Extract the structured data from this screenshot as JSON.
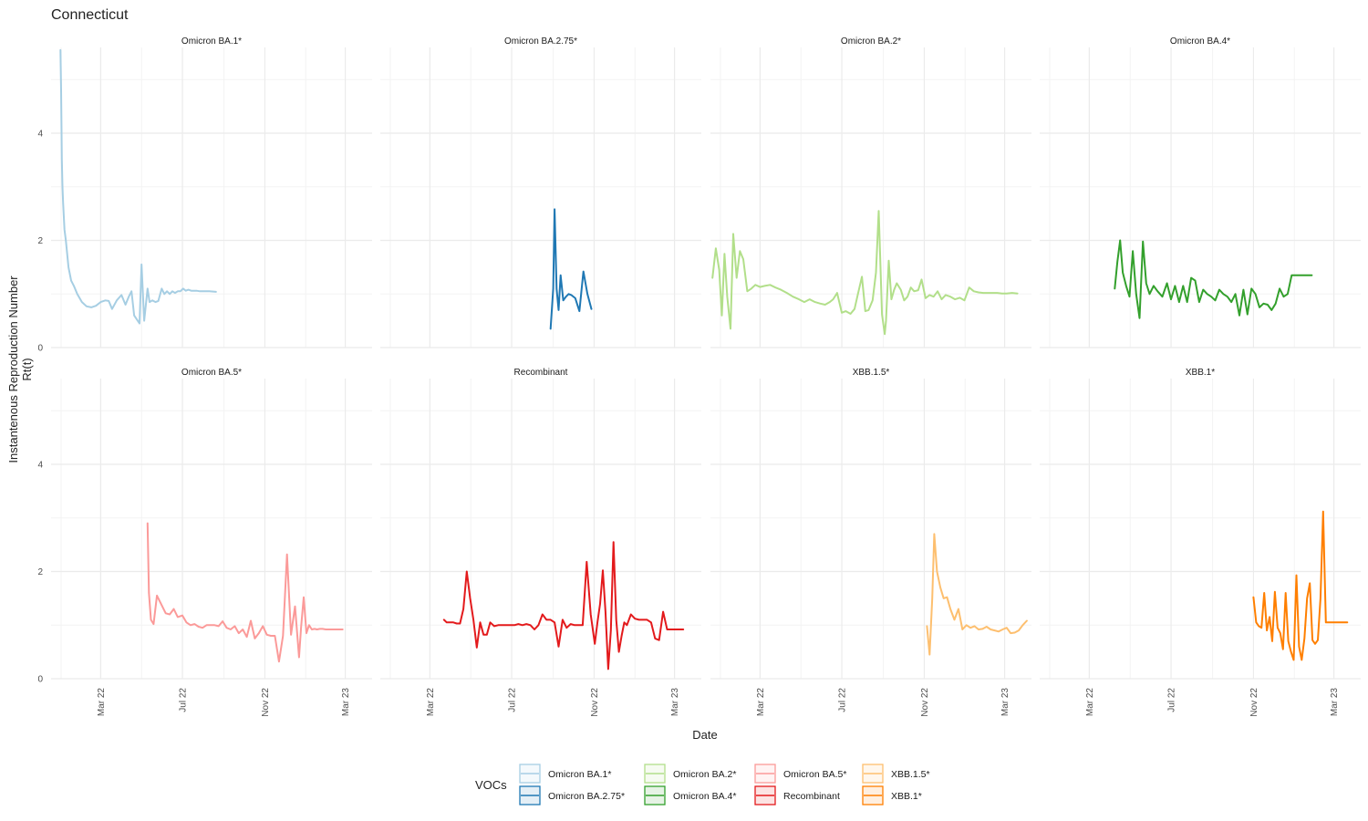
{
  "title": "Connecticut",
  "chart_data": {
    "type": "line",
    "title": "Connecticut",
    "xlabel": "Date",
    "ylabel_line1": "Instantenous Reproduction Number",
    "ylabel_line2": "Rt(t)",
    "x_ticks": [
      "Mar 22",
      "Jul 22",
      "Nov 22",
      "Mar 23"
    ],
    "y_ticks": [
      "0",
      "2",
      "4"
    ],
    "ylim": [
      0,
      5.6
    ],
    "grid": true,
    "legend": {
      "title": "VOCs",
      "position": "bottom",
      "entries": [
        {
          "label": "Omicron BA.1*",
          "color": "#a6cee3"
        },
        {
          "label": "Omicron BA.2.75*",
          "color": "#1f78b4"
        },
        {
          "label": "Omicron BA.2*",
          "color": "#b2df8a"
        },
        {
          "label": "Omicron BA.4*",
          "color": "#33a02c"
        },
        {
          "label": "Omicron BA.5*",
          "color": "#fb9a99"
        },
        {
          "label": "Recombinant",
          "color": "#e31a1c"
        },
        {
          "label": "XBB.1.5*",
          "color": "#fdbf6f"
        },
        {
          "label": "XBB.1*",
          "color": "#ff7f00"
        }
      ]
    },
    "series": [
      {
        "name": "Omicron BA.1*",
        "color": "#a6cee3",
        "x": [
          "2021-12-31",
          "2022-01-01",
          "2022-01-02",
          "2022-01-03",
          "2022-01-04",
          "2022-01-06",
          "2022-01-08",
          "2022-01-12",
          "2022-01-16",
          "2022-01-20",
          "2022-01-25",
          "2022-02-01",
          "2022-02-08",
          "2022-02-15",
          "2022-02-22",
          "2022-03-01",
          "2022-03-08",
          "2022-03-13",
          "2022-03-18",
          "2022-03-25",
          "2022-04-01",
          "2022-04-07",
          "2022-04-12",
          "2022-04-16",
          "2022-04-20",
          "2022-04-28",
          "2022-05-01",
          "2022-05-05",
          "2022-05-10",
          "2022-05-13",
          "2022-05-17",
          "2022-05-22",
          "2022-05-26",
          "2022-05-31",
          "2022-06-04",
          "2022-06-08",
          "2022-06-12",
          "2022-06-16",
          "2022-06-20",
          "2022-06-24",
          "2022-06-28",
          "2022-07-02",
          "2022-07-06",
          "2022-07-10",
          "2022-07-14",
          "2022-07-18",
          "2022-07-22",
          "2022-07-27",
          "2022-08-01",
          "2022-08-10",
          "2022-08-20"
        ],
        "y": [
          5.55,
          4.8,
          3.5,
          3.0,
          2.7,
          2.2,
          2.0,
          1.5,
          1.25,
          1.15,
          1.0,
          0.85,
          0.77,
          0.75,
          0.78,
          0.85,
          0.88,
          0.87,
          0.72,
          0.88,
          0.98,
          0.8,
          0.95,
          1.05,
          0.6,
          0.45,
          1.55,
          0.5,
          1.1,
          0.85,
          0.88,
          0.85,
          0.87,
          1.1,
          1.0,
          1.05,
          1.0,
          1.05,
          1.02,
          1.05,
          1.05,
          1.1,
          1.06,
          1.08,
          1.06,
          1.06,
          1.06,
          1.05,
          1.05,
          1.05,
          1.04
        ]
      },
      {
        "name": "Omicron BA.2.75*",
        "color": "#1f78b4",
        "x": [
          "2022-08-28",
          "2022-09-01",
          "2022-09-03",
          "2022-09-06",
          "2022-09-09",
          "2022-09-12",
          "2022-09-16",
          "2022-09-20",
          "2022-09-24",
          "2022-09-28",
          "2022-10-04",
          "2022-10-10",
          "2022-10-16",
          "2022-10-22",
          "2022-10-28"
        ],
        "y": [
          0.35,
          1.1,
          2.58,
          1.1,
          0.7,
          1.35,
          0.88,
          0.95,
          1.0,
          0.98,
          0.92,
          0.68,
          1.42,
          1.0,
          0.72
        ]
      },
      {
        "name": "Omicron BA.2*",
        "color": "#b2df8a",
        "x": [
          "2021-12-20",
          "2021-12-25",
          "2021-12-30",
          "2022-01-03",
          "2022-01-07",
          "2022-01-11",
          "2022-01-16",
          "2022-01-20",
          "2022-01-25",
          "2022-01-30",
          "2022-02-04",
          "2022-02-10",
          "2022-02-16",
          "2022-02-22",
          "2022-03-01",
          "2022-03-08",
          "2022-03-16",
          "2022-03-24",
          "2022-04-01",
          "2022-04-10",
          "2022-04-19",
          "2022-04-28",
          "2022-05-06",
          "2022-05-14",
          "2022-05-22",
          "2022-05-30",
          "2022-06-06",
          "2022-06-13",
          "2022-06-18",
          "2022-06-24",
          "2022-07-01",
          "2022-07-07",
          "2022-07-14",
          "2022-07-20",
          "2022-07-25",
          "2022-07-31",
          "2022-08-05",
          "2022-08-10",
          "2022-08-16",
          "2022-08-21",
          "2022-08-25",
          "2022-08-30",
          "2022-09-03",
          "2022-09-05",
          "2022-09-09",
          "2022-09-13",
          "2022-09-17",
          "2022-09-21",
          "2022-09-27",
          "2022-10-02",
          "2022-10-07",
          "2022-10-12",
          "2022-10-17",
          "2022-10-23",
          "2022-10-28",
          "2022-11-03",
          "2022-11-09",
          "2022-11-15",
          "2022-11-21",
          "2022-11-27",
          "2022-12-03",
          "2022-12-10",
          "2022-12-17",
          "2022-12-24",
          "2022-12-31",
          "2023-01-07",
          "2023-01-14",
          "2023-01-21",
          "2023-01-28",
          "2023-02-04",
          "2023-02-11",
          "2023-02-18",
          "2023-02-25",
          "2023-03-04",
          "2023-03-12",
          "2023-03-20"
        ],
        "y": [
          1.3,
          1.85,
          1.45,
          0.6,
          1.75,
          0.95,
          0.35,
          2.12,
          1.3,
          1.8,
          1.65,
          1.05,
          1.1,
          1.17,
          1.13,
          1.15,
          1.17,
          1.12,
          1.08,
          1.02,
          0.95,
          0.9,
          0.85,
          0.9,
          0.85,
          0.82,
          0.8,
          0.85,
          0.9,
          1.02,
          0.65,
          0.68,
          0.63,
          0.72,
          1.0,
          1.32,
          0.68,
          0.7,
          0.88,
          1.4,
          2.55,
          0.62,
          0.25,
          0.5,
          1.62,
          0.9,
          1.08,
          1.2,
          1.08,
          0.88,
          0.95,
          1.12,
          1.05,
          1.07,
          1.27,
          0.92,
          0.98,
          0.95,
          1.05,
          0.9,
          0.98,
          0.95,
          0.9,
          0.93,
          0.88,
          1.12,
          1.05,
          1.03,
          1.02,
          1.02,
          1.02,
          1.02,
          1.01,
          1.01,
          1.02,
          1.01
        ]
      },
      {
        "name": "Omicron BA.4*",
        "color": "#33a02c",
        "x": [
          "2022-04-08",
          "2022-04-12",
          "2022-04-16",
          "2022-04-20",
          "2022-04-25",
          "2022-04-30",
          "2022-05-05",
          "2022-05-10",
          "2022-05-15",
          "2022-05-20",
          "2022-05-25",
          "2022-05-30",
          "2022-06-05",
          "2022-06-11",
          "2022-06-18",
          "2022-06-25",
          "2022-07-01",
          "2022-07-07",
          "2022-07-13",
          "2022-07-19",
          "2022-07-25",
          "2022-07-31",
          "2022-08-06",
          "2022-08-12",
          "2022-08-18",
          "2022-08-24",
          "2022-08-30",
          "2022-09-05",
          "2022-09-11",
          "2022-09-17",
          "2022-09-23",
          "2022-09-29",
          "2022-10-05",
          "2022-10-11",
          "2022-10-17",
          "2022-10-23",
          "2022-10-29",
          "2022-11-04",
          "2022-11-10",
          "2022-11-16",
          "2022-11-22",
          "2022-11-28",
          "2022-12-04",
          "2022-12-10",
          "2022-12-16",
          "2022-12-22",
          "2022-12-28",
          "2023-01-03",
          "2023-01-09",
          "2023-01-15",
          "2023-01-21",
          "2023-01-27"
        ],
        "y": [
          1.1,
          1.6,
          2.0,
          1.4,
          1.15,
          0.95,
          1.8,
          1.0,
          0.55,
          1.98,
          1.2,
          1.0,
          1.15,
          1.05,
          0.95,
          1.2,
          0.9,
          1.15,
          0.85,
          1.15,
          0.85,
          1.3,
          1.25,
          0.85,
          1.08,
          1.0,
          0.95,
          0.88,
          1.08,
          1.0,
          0.95,
          0.85,
          1.0,
          0.6,
          1.08,
          0.62,
          1.1,
          1.0,
          0.75,
          0.82,
          0.8,
          0.7,
          0.82,
          1.1,
          0.95,
          1.0,
          1.35,
          1.35,
          1.35,
          1.35,
          1.35,
          1.35
        ]
      },
      {
        "name": "Omicron BA.5*",
        "color": "#fb9a99",
        "x": [
          "2022-05-10",
          "2022-05-12",
          "2022-05-15",
          "2022-05-19",
          "2022-05-24",
          "2022-05-30",
          "2022-06-06",
          "2022-06-12",
          "2022-06-18",
          "2022-06-24",
          "2022-07-01",
          "2022-07-07",
          "2022-07-13",
          "2022-07-19",
          "2022-07-25",
          "2022-07-31",
          "2022-08-06",
          "2022-08-12",
          "2022-08-18",
          "2022-08-24",
          "2022-08-30",
          "2022-09-05",
          "2022-09-11",
          "2022-09-17",
          "2022-09-23",
          "2022-09-29",
          "2022-10-05",
          "2022-10-11",
          "2022-10-17",
          "2022-10-23",
          "2022-10-29",
          "2022-11-04",
          "2022-11-10",
          "2022-11-16",
          "2022-11-22",
          "2022-11-28",
          "2022-12-04",
          "2022-12-10",
          "2022-12-16",
          "2022-12-22",
          "2022-12-25",
          "2022-12-29",
          "2023-01-02",
          "2023-01-06",
          "2023-01-10",
          "2023-01-14",
          "2023-01-18",
          "2023-01-22",
          "2023-01-26",
          "2023-01-31",
          "2023-02-05",
          "2023-02-10",
          "2023-02-15",
          "2023-02-20",
          "2023-02-25"
        ],
        "y": [
          2.9,
          1.6,
          1.1,
          1.02,
          1.55,
          1.4,
          1.22,
          1.2,
          1.3,
          1.15,
          1.18,
          1.05,
          1.0,
          1.02,
          0.97,
          0.95,
          1.0,
          1.0,
          1.0,
          0.98,
          1.07,
          0.95,
          0.92,
          0.98,
          0.85,
          0.92,
          0.78,
          1.08,
          0.75,
          0.85,
          0.98,
          0.82,
          0.8,
          0.8,
          0.32,
          0.8,
          2.32,
          0.82,
          1.35,
          0.4,
          0.95,
          1.52,
          0.85,
          1.0,
          0.92,
          0.93,
          0.92,
          0.93,
          0.93,
          0.92,
          0.92,
          0.92,
          0.92,
          0.92,
          0.92
        ]
      },
      {
        "name": "Recombinant",
        "color": "#e31a1c",
        "x": [
          "2022-03-22",
          "2022-03-26",
          "2022-03-31",
          "2022-04-05",
          "2022-04-10",
          "2022-04-15",
          "2022-04-20",
          "2022-04-25",
          "2022-04-30",
          "2022-05-05",
          "2022-05-10",
          "2022-05-15",
          "2022-05-20",
          "2022-05-25",
          "2022-05-30",
          "2022-06-05",
          "2022-06-11",
          "2022-06-17",
          "2022-06-23",
          "2022-06-29",
          "2022-07-05",
          "2022-07-11",
          "2022-07-17",
          "2022-07-23",
          "2022-07-29",
          "2022-08-04",
          "2022-08-10",
          "2022-08-16",
          "2022-08-22",
          "2022-08-28",
          "2022-09-03",
          "2022-09-09",
          "2022-09-15",
          "2022-09-21",
          "2022-09-27",
          "2022-10-03",
          "2022-10-09",
          "2022-10-15",
          "2022-10-21",
          "2022-10-27",
          "2022-11-02",
          "2022-11-06",
          "2022-11-10",
          "2022-11-14",
          "2022-11-18",
          "2022-11-22",
          "2022-11-26",
          "2022-11-30",
          "2022-12-04",
          "2022-12-08",
          "2022-12-12",
          "2022-12-16",
          "2022-12-20",
          "2022-12-26",
          "2023-01-01",
          "2023-01-07",
          "2023-01-13",
          "2023-01-19",
          "2023-01-25",
          "2023-01-31",
          "2023-02-06",
          "2023-02-12",
          "2023-02-18",
          "2023-02-24",
          "2023-03-02",
          "2023-03-08",
          "2023-03-14"
        ],
        "y": [
          1.1,
          1.05,
          1.05,
          1.05,
          1.03,
          1.03,
          1.3,
          2.0,
          1.5,
          1.1,
          0.58,
          1.05,
          0.82,
          0.82,
          1.05,
          0.98,
          1.0,
          1.0,
          1.0,
          1.0,
          1.0,
          1.02,
          1.0,
          1.02,
          1.0,
          0.92,
          1.0,
          1.2,
          1.1,
          1.1,
          1.05,
          0.6,
          1.1,
          0.95,
          1.02,
          1.0,
          1.0,
          1.0,
          2.18,
          1.2,
          0.65,
          1.05,
          1.4,
          2.02,
          1.25,
          0.18,
          0.9,
          2.55,
          1.1,
          0.5,
          0.8,
          1.05,
          1.0,
          1.2,
          1.12,
          1.1,
          1.1,
          1.1,
          1.05,
          0.75,
          0.72,
          1.25,
          0.92,
          0.92,
          0.92,
          0.92,
          0.92
        ]
      },
      {
        "name": "XBB.1.5*",
        "color": "#fdbf6f",
        "x": [
          "2022-11-05",
          "2022-11-09",
          "2022-11-13",
          "2022-11-16",
          "2022-11-20",
          "2022-11-25",
          "2022-11-30",
          "2022-12-05",
          "2022-12-10",
          "2022-12-16",
          "2022-12-22",
          "2022-12-28",
          "2023-01-03",
          "2023-01-09",
          "2023-01-15",
          "2023-01-21",
          "2023-01-27",
          "2023-02-02",
          "2023-02-08",
          "2023-02-14",
          "2023-02-20",
          "2023-02-26",
          "2023-03-04",
          "2023-03-10",
          "2023-03-16",
          "2023-03-22",
          "2023-03-28",
          "2023-04-03"
        ],
        "y": [
          0.98,
          0.45,
          1.5,
          2.7,
          2.0,
          1.7,
          1.5,
          1.52,
          1.3,
          1.1,
          1.3,
          0.92,
          1.0,
          0.95,
          0.98,
          0.92,
          0.93,
          0.97,
          0.92,
          0.9,
          0.88,
          0.92,
          0.95,
          0.85,
          0.86,
          0.9,
          1.0,
          1.08
        ]
      },
      {
        "name": "XBB.1*",
        "color": "#ff7f00",
        "x": [
          "2022-11-01",
          "2022-11-05",
          "2022-11-09",
          "2022-11-13",
          "2022-11-17",
          "2022-11-21",
          "2022-11-25",
          "2022-11-29",
          "2022-12-03",
          "2022-12-07",
          "2022-12-11",
          "2022-12-15",
          "2022-12-19",
          "2022-12-23",
          "2022-12-27",
          "2022-12-31",
          "2023-01-04",
          "2023-01-08",
          "2023-01-12",
          "2023-01-16",
          "2023-01-20",
          "2023-01-24",
          "2023-01-28",
          "2023-02-01",
          "2023-02-05",
          "2023-02-09",
          "2023-02-13",
          "2023-02-17",
          "2023-02-21",
          "2023-02-25",
          "2023-03-01",
          "2023-03-05",
          "2023-03-09",
          "2023-03-13",
          "2023-03-17",
          "2023-03-21"
        ],
        "y": [
          1.52,
          1.05,
          0.98,
          0.95,
          1.6,
          0.9,
          1.15,
          0.7,
          1.62,
          0.95,
          0.85,
          0.55,
          1.6,
          0.7,
          0.5,
          0.35,
          1.93,
          0.6,
          0.35,
          0.75,
          1.5,
          1.78,
          0.72,
          0.65,
          0.72,
          1.5,
          3.12,
          1.05,
          1.05,
          1.05,
          1.05,
          1.05,
          1.05,
          1.05,
          1.05,
          1.05
        ]
      }
    ]
  }
}
